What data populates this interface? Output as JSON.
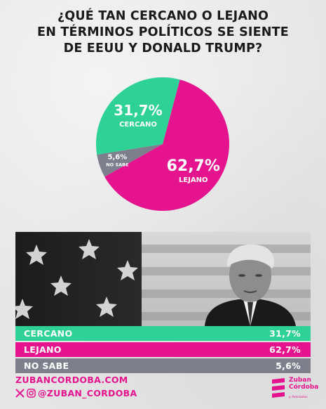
{
  "title_lines": [
    "¿QUÉ TAN CERCANO O LEJANO",
    "EN TÉRMINOS POLÍTICOS SE SIENTE",
    "DE EEUU Y DONALD TRUMP?"
  ],
  "chart_data": {
    "type": "pie",
    "title": "¿QUÉ TAN CERCANO O LEJANO EN TÉRMINOS POLÍTICOS SE SIENTE DE EEUU Y DONALD TRUMP?",
    "slices": [
      {
        "label": "CERCANO",
        "value": 31.7,
        "display": "31,7%",
        "color": "#2ed196"
      },
      {
        "label": "LEJANO",
        "value": 62.7,
        "display": "62,7%",
        "color": "#e6138f"
      },
      {
        "label": "NO SABE",
        "value": 5.6,
        "display": "5,6%",
        "color": "#7d7f8c"
      }
    ]
  },
  "footer": {
    "website": "ZUBANCORDOBA.COM",
    "handle": "@ZUBAN_CORDOBA",
    "icons": [
      "x-icon",
      "instagram-icon"
    ]
  },
  "logo": {
    "lines": [
      "Zuban",
      "Córdoba"
    ],
    "sub": "y Asociados"
  }
}
